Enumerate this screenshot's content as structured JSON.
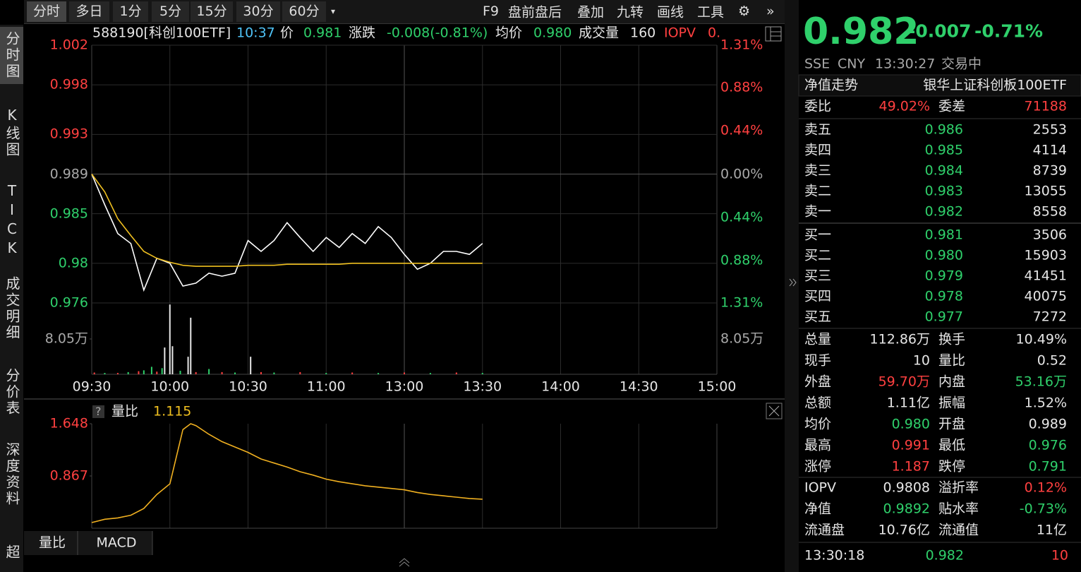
{
  "toolbar": {
    "tabs": [
      "分时",
      "多日",
      "1分",
      "5分",
      "15分",
      "30分",
      "60分"
    ],
    "active": 0,
    "tools": [
      "F9",
      "盘前盘后",
      "叠加",
      "九转",
      "画线",
      "工具"
    ]
  },
  "side_nav": [
    "分时图",
    "K线图",
    "TICK",
    "成交明细",
    "分价表",
    "深度资料",
    "超级"
  ],
  "info_bar": [
    {
      "text": "588190[科创100ETF]",
      "color": "white"
    },
    {
      "text": "10:37",
      "color": "cyan"
    },
    {
      "text": "价",
      "color": "white"
    },
    {
      "text": "0.981",
      "color": "green"
    },
    {
      "text": "涨跌",
      "color": "white"
    },
    {
      "text": "-0.008(-0.81%)",
      "color": "green"
    },
    {
      "text": "均价",
      "color": "white"
    },
    {
      "text": "0.980",
      "color": "green"
    },
    {
      "text": "成交量",
      "color": "white"
    },
    {
      "text": "160",
      "color": "white"
    },
    {
      "text": "IOPV",
      "color": "red"
    },
    {
      "text": "0.",
      "color": "red"
    }
  ],
  "chart_data": [
    {
      "type": "line",
      "x": [
        0,
        5,
        10,
        15,
        20,
        25,
        30,
        35,
        40,
        45,
        50,
        55,
        60,
        65,
        70,
        75,
        80,
        85,
        90,
        95,
        100,
        105,
        110,
        115,
        120,
        125,
        130,
        135,
        140,
        145,
        150
      ],
      "series": [
        {
          "color": "#ffffff",
          "values": [
            0.989,
            0.9859,
            0.983,
            0.982,
            0.9773,
            0.9805,
            0.98,
            0.9777,
            0.978,
            0.979,
            0.9787,
            0.979,
            0.9823,
            0.9812,
            0.9823,
            0.9841,
            0.9826,
            0.9812,
            0.9826,
            0.9816,
            0.983,
            0.982,
            0.9837,
            0.9826,
            0.9809,
            0.9794,
            0.98,
            0.9812,
            0.9812,
            0.9809,
            0.982
          ]
        },
        {
          "color": "#f0c020",
          "values": [
            0.989,
            0.9872,
            0.9845,
            0.9828,
            0.9812,
            0.9805,
            0.9801,
            0.9798,
            0.9797,
            0.9797,
            0.9797,
            0.9797,
            0.9798,
            0.9798,
            0.9798,
            0.9799,
            0.9799,
            0.9799,
            0.9799,
            0.9799,
            0.98,
            0.98,
            0.98,
            0.98,
            0.98,
            0.98,
            0.98,
            0.98,
            0.98,
            0.98,
            0.98
          ]
        }
      ],
      "xlim": [
        0,
        240
      ],
      "xticks": [
        {
          "value": 0,
          "label": "09:30"
        },
        {
          "value": 30,
          "label": "10:00"
        },
        {
          "value": 60,
          "label": "10:30"
        },
        {
          "value": 90,
          "label": "11:00"
        },
        {
          "value": 120,
          "label": "13:00"
        },
        {
          "value": 150,
          "label": "13:30"
        },
        {
          "value": 180,
          "label": "14:00"
        },
        {
          "value": 210,
          "label": "14:30"
        },
        {
          "value": 240,
          "label": "15:00"
        }
      ],
      "ylim": [
        0.976,
        1.002
      ],
      "yticks": [
        1.002,
        0.998,
        0.993,
        0.989,
        0.985,
        0.98,
        0.976
      ],
      "y2lim": [
        -1.31,
        1.31
      ],
      "y2ticks": [
        {
          "value": 1.31,
          "label": "1.31%"
        },
        {
          "value": 0.88,
          "label": "0.88%"
        },
        {
          "value": 0.44,
          "label": "0.44%"
        },
        {
          "value": 0,
          "label": "0.00%"
        },
        {
          "value": -0.44,
          "label": "0.44%"
        },
        {
          "value": -0.88,
          "label": "0.88%"
        },
        {
          "value": -1.31,
          "label": "1.31%"
        }
      ],
      "grid": true
    },
    {
      "type": "bar",
      "x": [
        1,
        5,
        10,
        14,
        18,
        20,
        23,
        25,
        27,
        28,
        30,
        31,
        34,
        37,
        38,
        40,
        45,
        50,
        55,
        61,
        65,
        70,
        80,
        90,
        100,
        110,
        120,
        130,
        140,
        150
      ],
      "values": [
        0.4,
        0.3,
        0.3,
        0.5,
        0.7,
        0.9,
        1.7,
        0.6,
        1.4,
        6.1,
        15.9,
        6.4,
        0.8,
        4,
        12.9,
        0.5,
        1.2,
        0.5,
        0.4,
        4,
        0.5,
        0.4,
        0.5,
        0.3,
        0.4,
        0.3,
        0.4,
        0.3,
        0.4,
        0.3
      ],
      "colors": [
        "#ff4040",
        "#2fd06b",
        "#ff4040",
        "#2fd06b",
        "#ff4040",
        "#2fd06b",
        "#2fd06b",
        "#ff4040",
        "#2fd06b",
        "#e8e8e8",
        "#e8e8e8",
        "#e8e8e8",
        "#2fd06b",
        "#e8e8e8",
        "#e8e8e8",
        "#ff4040",
        "#2fd06b",
        "#ff4040",
        "#2fd06b",
        "#e8e8e8",
        "#ff4040",
        "#2fd06b",
        "#ff4040",
        "#2fd06b",
        "#ff4040",
        "#2fd06b",
        "#ff4040",
        "#2fd06b",
        "#ff4040",
        "#2fd06b"
      ],
      "ylim": [
        0,
        16.1
      ],
      "yticks": [
        {
          "value": 8.05,
          "label": "8.05万"
        }
      ]
    },
    {
      "type": "line",
      "title": "量比",
      "last_value": 1.115,
      "x": [
        0,
        5,
        10,
        15,
        20,
        25,
        30,
        35,
        38,
        40,
        45,
        50,
        55,
        60,
        65,
        70,
        75,
        80,
        85,
        90,
        95,
        100,
        105,
        110,
        115,
        120,
        125,
        130,
        135,
        140,
        145,
        150
      ],
      "series": [
        {
          "color": "#f0b020",
          "values": [
            0.17,
            0.22,
            0.24,
            0.28,
            0.38,
            0.59,
            0.75,
            1.56,
            1.648,
            1.62,
            1.49,
            1.38,
            1.3,
            1.22,
            1.12,
            1.06,
            1,
            0.93,
            0.88,
            0.82,
            0.78,
            0.75,
            0.72,
            0.7,
            0.68,
            0.66,
            0.62,
            0.59,
            0.57,
            0.55,
            0.53,
            0.52
          ]
        }
      ],
      "ylim": [
        0.086,
        1.648
      ],
      "yticks": [
        1.648,
        0.867
      ]
    }
  ],
  "sub_tabs": [
    "量比",
    "MACD"
  ],
  "quote": {
    "price": "0.982",
    "change": "-0.007",
    "pct": "-0.71%",
    "meta": [
      "SSE",
      "CNY",
      "13:30:27",
      "交易中"
    ],
    "nav_label": "净值走势",
    "fund_name": "银华上证科创板100ETF",
    "weibi_label": "委比",
    "weibi": "49.02%",
    "weicha_label": "委差",
    "weicha": "71188"
  },
  "asks": [
    [
      "卖五",
      "0.986",
      "2553"
    ],
    [
      "卖四",
      "0.985",
      "4114"
    ],
    [
      "卖三",
      "0.984",
      "8739"
    ],
    [
      "卖二",
      "0.983",
      "13055"
    ],
    [
      "卖一",
      "0.982",
      "8558"
    ]
  ],
  "bids": [
    [
      "买一",
      "0.981",
      "3506"
    ],
    [
      "买二",
      "0.980",
      "15903"
    ],
    [
      "买三",
      "0.979",
      "41451"
    ],
    [
      "买四",
      "0.978",
      "40075"
    ],
    [
      "买五",
      "0.977",
      "7272"
    ]
  ],
  "stats": [
    [
      {
        "label": "总量",
        "value": "112.86万",
        "color": "white"
      },
      {
        "label": "换手",
        "value": "10.49%",
        "color": "white"
      }
    ],
    [
      {
        "label": "现手",
        "value": "10",
        "color": "white"
      },
      {
        "label": "量比",
        "value": "0.52",
        "color": "white"
      }
    ],
    [
      {
        "label": "外盘",
        "value": "59.70万",
        "color": "red"
      },
      {
        "label": "内盘",
        "value": "53.16万",
        "color": "green"
      }
    ],
    [
      {
        "label": "总额",
        "value": "1.11亿",
        "color": "white"
      },
      {
        "label": "振幅",
        "value": "1.52%",
        "color": "white"
      }
    ],
    [
      {
        "label": "均价",
        "value": "0.980",
        "color": "green"
      },
      {
        "label": "开盘",
        "value": "0.989",
        "color": "white"
      }
    ],
    [
      {
        "label": "最高",
        "value": "0.991",
        "color": "red"
      },
      {
        "label": "最低",
        "value": "0.976",
        "color": "green"
      }
    ],
    [
      {
        "label": "涨停",
        "value": "1.187",
        "color": "red"
      },
      {
        "label": "跌停",
        "value": "0.791",
        "color": "green"
      }
    ],
    [
      {
        "label": "IOPV",
        "value": "0.9808",
        "color": "white"
      },
      {
        "label": "溢折率",
        "value": "0.12%",
        "color": "red"
      }
    ],
    [
      {
        "label": "净值",
        "value": "0.9892",
        "color": "green"
      },
      {
        "label": "贴水率",
        "value": "-0.73%",
        "color": "green"
      }
    ],
    [
      {
        "label": "流通盘",
        "value": "10.76亿",
        "color": "white"
      },
      {
        "label": "流通值",
        "value": "11亿",
        "color": "white"
      }
    ]
  ],
  "last_tick": [
    "13:30:18",
    "0.982",
    "10"
  ]
}
